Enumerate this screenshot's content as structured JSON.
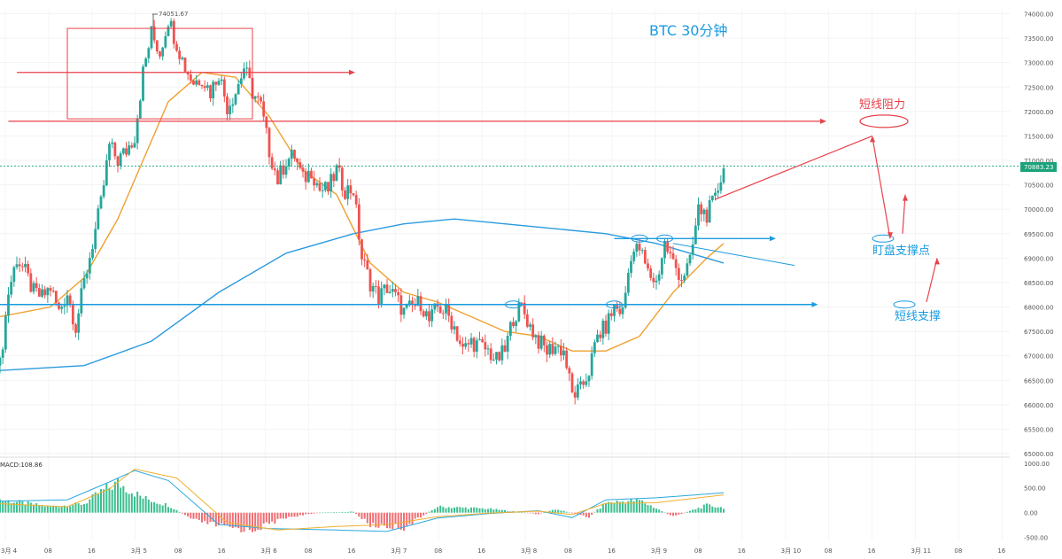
{
  "chart_data": {
    "type": "candlestick",
    "title": "BTC   30分钟",
    "symbol": "BTC",
    "timeframe": "30分钟",
    "ylim": [
      65000,
      74100
    ],
    "y_ticks": [
      "74000.00",
      "73500.00",
      "73000.00",
      "72500.00",
      "72000.00",
      "71500.00",
      "71000.00",
      "70500.00",
      "70000.00",
      "69500.00",
      "69000.00",
      "68500.00",
      "68000.00",
      "67500.00",
      "67000.00",
      "66500.00",
      "66000.00",
      "65500.00",
      "65000.00"
    ],
    "x_ticks": [
      "3月 4",
      "08",
      "16",
      "3月 5",
      "08",
      "16",
      "3月 6",
      "08",
      "16",
      "3月 7",
      "08",
      "16",
      "3月 8",
      "08",
      "16",
      "3月 9",
      "08",
      "16",
      "3月 10",
      "08",
      "16",
      "3月 11",
      "08",
      "16"
    ],
    "high_label": "74051.67",
    "current_price": "70883.23",
    "current_price_value": 70883.23,
    "close_path": [
      [
        0,
        66800
      ],
      [
        1,
        68300
      ],
      [
        2,
        69000
      ],
      [
        3,
        68700
      ],
      [
        4,
        68300
      ],
      [
        5,
        68200
      ],
      [
        6,
        68400
      ],
      [
        7,
        67900
      ],
      [
        8,
        68300
      ],
      [
        9,
        67600
      ],
      [
        10,
        68500
      ],
      [
        11,
        69300
      ],
      [
        12,
        70100
      ],
      [
        13,
        71300
      ],
      [
        14,
        71000
      ],
      [
        15,
        71200
      ],
      [
        16,
        71500
      ],
      [
        17,
        72800
      ],
      [
        18,
        73600
      ],
      [
        19,
        73200
      ],
      [
        20,
        73900
      ],
      [
        21,
        73400
      ],
      [
        22,
        72900
      ],
      [
        23,
        72600
      ],
      [
        24,
        72700
      ],
      [
        25,
        72400
      ],
      [
        26,
        72800
      ],
      [
        27,
        72100
      ],
      [
        28,
        72400
      ],
      [
        29,
        72900
      ],
      [
        30,
        72400
      ],
      [
        31,
        72100
      ],
      [
        32,
        71200
      ],
      [
        33,
        70600
      ],
      [
        34,
        71000
      ],
      [
        35,
        71100
      ],
      [
        36,
        70600
      ],
      [
        37,
        70800
      ],
      [
        38,
        70400
      ],
      [
        39,
        70400
      ],
      [
        40,
        70800
      ],
      [
        41,
        70400
      ],
      [
        42,
        70400
      ],
      [
        43,
        69000
      ],
      [
        44,
        68500
      ],
      [
        45,
        68200
      ],
      [
        46,
        68400
      ],
      [
        47,
        68200
      ],
      [
        48,
        67900
      ],
      [
        49,
        68000
      ],
      [
        50,
        68100
      ],
      [
        51,
        67700
      ],
      [
        52,
        68000
      ],
      [
        53,
        67900
      ],
      [
        54,
        67600
      ],
      [
        55,
        67100
      ],
      [
        56,
        67300
      ],
      [
        57,
        67200
      ],
      [
        58,
        67100
      ],
      [
        59,
        66900
      ],
      [
        60,
        67100
      ],
      [
        61,
        67800
      ],
      [
        62,
        68000
      ],
      [
        63,
        67600
      ],
      [
        64,
        67300
      ],
      [
        65,
        67100
      ],
      [
        66,
        67200
      ],
      [
        67,
        67100
      ],
      [
        68,
        66200
      ],
      [
        69,
        66300
      ],
      [
        70,
        66700
      ],
      [
        71,
        67400
      ],
      [
        72,
        67600
      ],
      [
        73,
        68000
      ],
      [
        74,
        67900
      ],
      [
        75,
        69100
      ],
      [
        76,
        69200
      ],
      [
        77,
        68700
      ],
      [
        78,
        68500
      ],
      [
        79,
        69300
      ],
      [
        80,
        68900
      ],
      [
        81,
        68600
      ],
      [
        82,
        68900
      ],
      [
        83,
        70000
      ],
      [
        84,
        69900
      ],
      [
        85,
        70200
      ],
      [
        86,
        70900
      ]
    ],
    "x_index_range": [
      0,
      120
    ],
    "ma_series": [
      {
        "color": "#f0a030",
        "points": [
          [
            0,
            67800
          ],
          [
            6,
            68000
          ],
          [
            10,
            68600
          ],
          [
            14,
            69800
          ],
          [
            17,
            71000
          ],
          [
            20,
            72200
          ],
          [
            24,
            72800
          ],
          [
            28,
            72700
          ],
          [
            32,
            71900
          ],
          [
            36,
            70800
          ],
          [
            40,
            70300
          ],
          [
            44,
            68900
          ],
          [
            48,
            68300
          ],
          [
            52,
            68100
          ],
          [
            56,
            67800
          ],
          [
            60,
            67500
          ],
          [
            64,
            67400
          ],
          [
            68,
            67100
          ],
          [
            72,
            67100
          ],
          [
            76,
            67400
          ],
          [
            80,
            68300
          ],
          [
            84,
            69000
          ],
          [
            86,
            69300
          ]
        ]
      },
      {
        "color": "#2b9be0",
        "points": [
          [
            0,
            66700
          ],
          [
            10,
            66800
          ],
          [
            18,
            67300
          ],
          [
            26,
            68300
          ],
          [
            34,
            69100
          ],
          [
            42,
            69500
          ],
          [
            48,
            69700
          ],
          [
            54,
            69800
          ],
          [
            60,
            69700
          ],
          [
            66,
            69600
          ],
          [
            72,
            69500
          ],
          [
            78,
            69300
          ],
          [
            86,
            68900
          ]
        ]
      }
    ],
    "annotations": {
      "resistance_label": "短线阻力",
      "support_label": "短线支撑",
      "watch_support_label": "盯盘支撑点",
      "resistance_price": 71800,
      "support_price": 68050,
      "watch_support_price": 69400,
      "upper_hline_price": 72800,
      "box_price_top": 73700,
      "box_price_bottom": 71850,
      "box_index_range": [
        8,
        30
      ],
      "upper_hline_index_range": [
        2,
        42
      ],
      "support_hline_index_range": [
        0,
        97
      ],
      "resistance_hline_index_range": [
        1,
        98
      ],
      "watch_hline_index_range": [
        73,
        92
      ],
      "watch_ellipse_indices": [
        76,
        79
      ],
      "support_ellipse_indices": [
        61,
        73
      ],
      "dotted_guide_index_range": [
        61,
        73
      ],
      "current_bar_index": 86,
      "arrow_up_target_price": 71500,
      "arrow_down_target_price": 69400,
      "arrow2_target_price": 70300,
      "arrow3_target_price": 69000,
      "fall_line_index_range": [
        80,
        86
      ],
      "fall_line_price_range": [
        69300,
        68850
      ]
    },
    "macd": {
      "label": "MACD:108.86",
      "ylim": [
        -560,
        1050
      ],
      "y_ticks": [
        "1000.00",
        "500.00",
        "0.00",
        "-500.00"
      ],
      "histogram_path": [
        [
          0,
          260
        ],
        [
          6,
          120
        ],
        [
          10,
          180
        ],
        [
          12,
          420
        ],
        [
          14,
          600
        ],
        [
          17,
          300
        ],
        [
          20,
          150
        ],
        [
          23,
          -150
        ],
        [
          27,
          -300
        ],
        [
          30,
          -350
        ],
        [
          34,
          -100
        ],
        [
          38,
          0
        ],
        [
          42,
          20
        ],
        [
          44,
          -250
        ],
        [
          48,
          -300
        ],
        [
          52,
          120
        ],
        [
          58,
          80
        ],
        [
          64,
          -30
        ],
        [
          66,
          70
        ],
        [
          70,
          -90
        ],
        [
          72,
          200
        ],
        [
          76,
          250
        ],
        [
          80,
          -80
        ],
        [
          84,
          150
        ],
        [
          86,
          100
        ]
      ],
      "macd_line": [
        [
          0,
          230
        ],
        [
          8,
          260
        ],
        [
          13,
          620
        ],
        [
          16,
          850
        ],
        [
          20,
          650
        ],
        [
          26,
          -240
        ],
        [
          32,
          -320
        ],
        [
          40,
          -350
        ],
        [
          46,
          -380
        ],
        [
          52,
          -110
        ],
        [
          58,
          -20
        ],
        [
          64,
          40
        ],
        [
          68,
          -100
        ],
        [
          72,
          260
        ],
        [
          78,
          300
        ],
        [
          86,
          400
        ]
      ],
      "signal_line": [
        [
          0,
          180
        ],
        [
          8,
          120
        ],
        [
          13,
          480
        ],
        [
          16,
          880
        ],
        [
          21,
          700
        ],
        [
          27,
          -200
        ],
        [
          33,
          -350
        ],
        [
          40,
          -280
        ],
        [
          46,
          -240
        ],
        [
          52,
          -80
        ],
        [
          58,
          -10
        ],
        [
          64,
          30
        ],
        [
          68,
          -40
        ],
        [
          72,
          190
        ],
        [
          78,
          200
        ],
        [
          86,
          360
        ]
      ]
    }
  }
}
